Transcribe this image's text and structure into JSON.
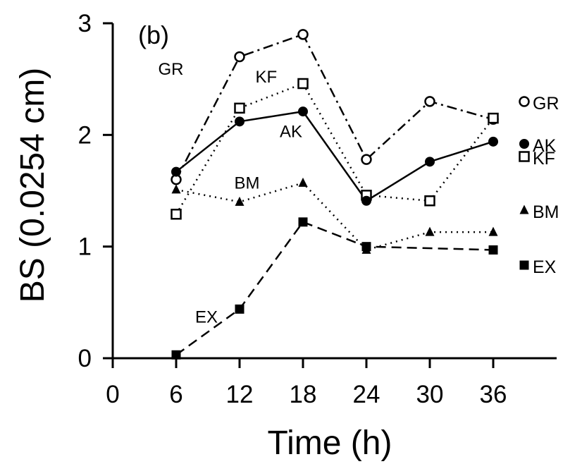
{
  "chart_data": {
    "type": "line",
    "panel_label": "(b)",
    "xlabel": "Time (h)",
    "ylabel": "BS (0.0254 cm)",
    "xlim": [
      0,
      42
    ],
    "ylim": [
      0,
      3
    ],
    "x_ticks": [
      0,
      6,
      12,
      18,
      24,
      30,
      36
    ],
    "y_ticks": [
      0,
      1,
      2,
      3
    ],
    "grid": false,
    "legend_position": "right",
    "x": [
      6,
      12,
      18,
      24,
      30,
      36
    ],
    "series": [
      {
        "name": "GR",
        "marker": "open-circle",
        "line": "dash-dot",
        "values": [
          1.6,
          2.7,
          2.9,
          1.78,
          2.3,
          2.14
        ],
        "inline_label": {
          "text": "GR",
          "x": 4.3,
          "y": 2.54
        }
      },
      {
        "name": "KF",
        "marker": "open-square",
        "line": "dotted",
        "values": [
          1.29,
          2.24,
          2.46,
          1.46,
          1.41,
          2.15
        ],
        "inline_label": {
          "text": "KF",
          "x": 13.5,
          "y": 2.47
        }
      },
      {
        "name": "AK",
        "marker": "filled-circle",
        "line": "solid",
        "values": [
          1.67,
          2.12,
          2.21,
          1.41,
          1.76,
          1.94
        ],
        "inline_label": {
          "text": "AK",
          "x": 15.8,
          "y": 1.98
        }
      },
      {
        "name": "BM",
        "marker": "filled-triangle",
        "line": "dotted",
        "values": [
          1.51,
          1.4,
          1.57,
          0.97,
          1.13,
          1.13
        ],
        "inline_label": {
          "text": "BM",
          "x": 11.5,
          "y": 1.52
        }
      },
      {
        "name": "EX",
        "marker": "filled-square",
        "line": "dashed",
        "values": [
          0.03,
          0.44,
          1.22,
          1.0,
          null,
          0.97
        ],
        "inline_label": {
          "text": "EX",
          "x": 7.8,
          "y": 0.32
        }
      }
    ],
    "legend": [
      {
        "label": "GR",
        "marker": "open-circle"
      },
      {
        "label": "AK",
        "marker": "filled-circle"
      },
      {
        "label": "KF",
        "marker": "open-square"
      },
      {
        "label": "BM",
        "marker": "filled-triangle"
      },
      {
        "label": "EX",
        "marker": "filled-square"
      }
    ],
    "colors": {
      "ink": "#000000",
      "background": "#ffffff"
    }
  }
}
